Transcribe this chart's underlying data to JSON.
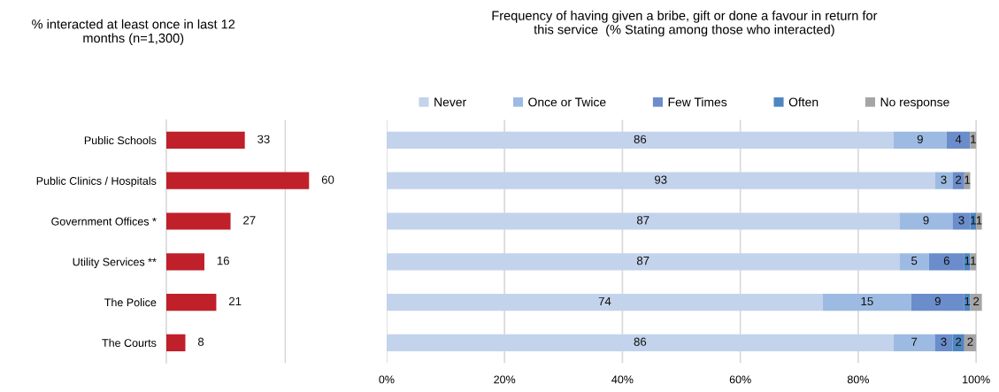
{
  "chart_data": [
    {
      "type": "bar",
      "orientation": "horizontal",
      "title": "% interacted at least once in last 12\nmonths (n=1,300)",
      "categories": [
        "Public Schools",
        "Public Clinics / Hospitals",
        "Government Offices *",
        "Utility Services **",
        "The Police",
        "The Courts"
      ],
      "values": [
        33,
        60,
        27,
        16,
        21,
        8
      ],
      "color": "#c0202a",
      "data_labels": true,
      "ref_lines": [
        {
          "axis": "x",
          "value": 50,
          "color": "#d9d9d9"
        }
      ],
      "tick_labels": "y",
      "legend": false
    },
    {
      "type": "bar",
      "orientation": "horizontal",
      "stacked": true,
      "title": "Frequency of having given a bribe, gift or done a favour in return for\nthis service  (% Stating among those who interacted)",
      "categories": [
        null,
        null,
        null,
        null,
        null,
        null
      ],
      "series": [
        {
          "name": "Never",
          "color": "#c3d3ec",
          "values": [
            86,
            93,
            87,
            87,
            74,
            86
          ]
        },
        {
          "name": "Once or Twice",
          "color": "#9dbbe2",
          "values": [
            9,
            3,
            9,
            5,
            15,
            7
          ]
        },
        {
          "name": "Few Times",
          "color": "#6b8dcb",
          "values": [
            4,
            2,
            3,
            6,
            9,
            3
          ]
        },
        {
          "name": "Often",
          "color": "#4e86c2",
          "values": [
            null,
            null,
            1,
            1,
            1,
            2
          ]
        },
        {
          "name": "No response",
          "color": "#a5a5a5",
          "values": [
            1,
            1,
            1,
            1,
            2,
            2
          ]
        }
      ],
      "data_labels": true,
      "xlim": [
        0,
        101
      ],
      "xticks": [
        {
          "value": 0,
          "label": "0%"
        },
        {
          "value": 20,
          "label": "20%"
        },
        {
          "value": 40,
          "label": "40%"
        },
        {
          "value": 60,
          "label": "60%"
        },
        {
          "value": 80,
          "label": "80%"
        },
        {
          "value": 100,
          "label": "100%"
        }
      ],
      "grid": "x",
      "legend": "top"
    }
  ]
}
